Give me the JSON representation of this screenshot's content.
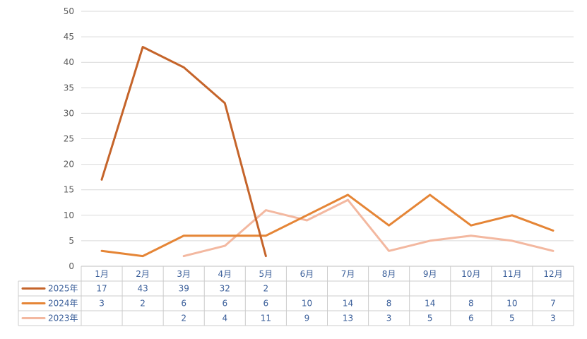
{
  "chart_data": {
    "type": "line",
    "title": "",
    "xlabel": "",
    "ylabel": "",
    "ylim": [
      0,
      50
    ],
    "yticks": [
      0,
      5,
      10,
      15,
      20,
      25,
      30,
      35,
      40,
      45,
      50
    ],
    "categories": [
      "1月",
      "2月",
      "3月",
      "4月",
      "5月",
      "6月",
      "7月",
      "8月",
      "9月",
      "10月",
      "11月",
      "12月"
    ],
    "series": [
      {
        "name": "2025年",
        "color": "#c5642a",
        "values": [
          17,
          43,
          39,
          32,
          2,
          null,
          null,
          null,
          null,
          null,
          null,
          null
        ]
      },
      {
        "name": "2024年",
        "color": "#e58536",
        "values": [
          3,
          2,
          6,
          6,
          6,
          10,
          14,
          8,
          14,
          8,
          10,
          7
        ]
      },
      {
        "name": "2023年",
        "color": "#f3b8a0",
        "values": [
          null,
          null,
          2,
          4,
          11,
          9,
          13,
          3,
          5,
          6,
          5,
          3
        ]
      }
    ],
    "grid": true,
    "legend": "data-table-left"
  }
}
